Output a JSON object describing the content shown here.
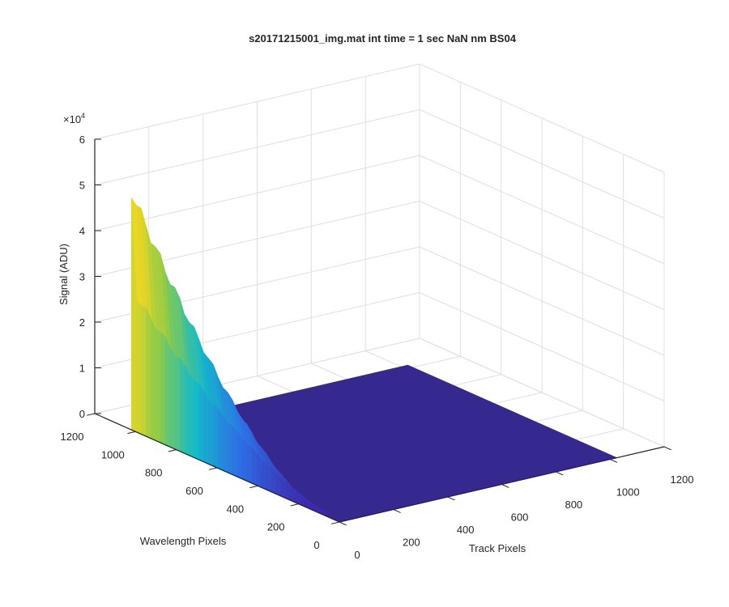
{
  "chart_data": {
    "type": "surface",
    "title": "s20171215001_img.mat int time = 1 sec  NaN nm BS04",
    "xlabel": "Track Pixels",
    "ylabel": "Wavelength Pixels",
    "zlabel": "Signal (ADU)",
    "z_exponent_label": "×10",
    "z_exponent_power": "4",
    "xlim": [
      0,
      1200
    ],
    "ylim": [
      0,
      1200
    ],
    "zlim": [
      0,
      60000
    ],
    "x_ticks": [
      "0",
      "200",
      "400",
      "600",
      "800",
      "1000",
      "1200"
    ],
    "y_ticks": [
      "0",
      "200",
      "400",
      "600",
      "800",
      "1000",
      "1200"
    ],
    "z_ticks": [
      "0",
      "1",
      "2",
      "3",
      "4",
      "5",
      "6"
    ],
    "grid": true,
    "colormap": [
      "#3e26a8",
      "#2e6ee6",
      "#14b9ca",
      "#8dcb4a",
      "#f9d820"
    ],
    "floor_color": "#35288f",
    "track_extent": [
      0,
      1024
    ],
    "wavelength_extent": [
      0,
      1024
    ],
    "signal_peak": 52000,
    "signal_peak_wavelength_pixel": 1024,
    "signal_zero_wavelength_pixel": 80,
    "signal_mid_level": 33000,
    "signal_low_level": 17000
  }
}
